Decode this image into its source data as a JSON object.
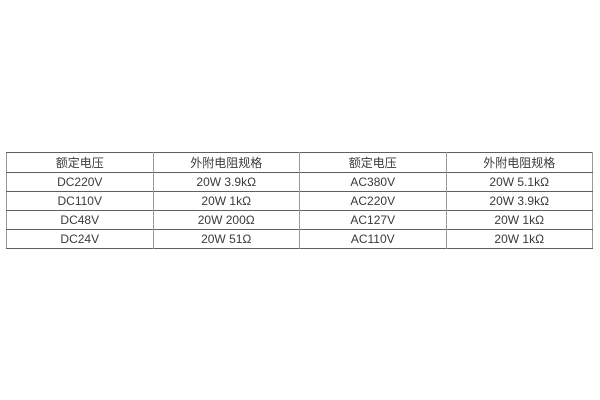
{
  "table": {
    "columns": [
      "额定电压",
      "外附电阻规格",
      "额定电压",
      "外附电阻规格"
    ],
    "rows": [
      [
        "DC220V",
        "20W 3.9kΩ",
        "AC380V",
        "20W 5.1kΩ"
      ],
      [
        "DC110V",
        "20W 1kΩ",
        "AC220V",
        "20W 3.9kΩ"
      ],
      [
        "DC48V",
        "20W 200Ω",
        "AC127V",
        "20W 1kΩ"
      ],
      [
        "DC24V",
        "20W 51Ω",
        "AC110V",
        "20W 1kΩ"
      ]
    ],
    "border_color_horizontal": "#5f5f5f",
    "border_color_vertical": "#9b9b9b",
    "text_color": "#3a3a3a",
    "background_color": "#ffffff"
  }
}
